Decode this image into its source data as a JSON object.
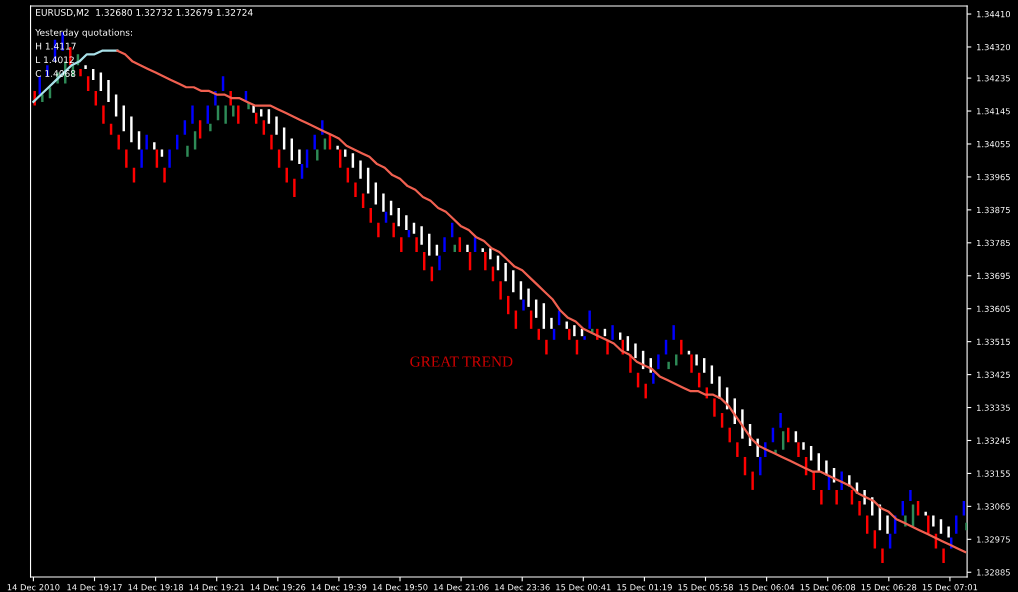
{
  "chart_data": {
    "type": "bar",
    "title": "EURUSD,M2  1.32680 1.32732 1.32679 1.32724",
    "annotations": [
      "Yesterday quotations:",
      "H 1.4117",
      "L 1.4012",
      "C 1.4068",
      "GREAT TREND"
    ],
    "categories": [
      "14 Dec 2010",
      null,
      null,
      null,
      null,
      null,
      null,
      null,
      "14 Dec 19:17",
      null,
      null,
      null,
      null,
      null,
      null,
      null,
      "14 Dec 19:18",
      null,
      null,
      null,
      null,
      null,
      null,
      null,
      "14 Dec 19:21",
      null,
      null,
      null,
      null,
      null,
      null,
      null,
      "14 Dec 19:26",
      null,
      null,
      null,
      null,
      null,
      null,
      null,
      "14 Dec 19:39",
      null,
      null,
      null,
      null,
      null,
      null,
      null,
      "14 Dec 19:50",
      null,
      null,
      null,
      null,
      null,
      null,
      null,
      "14 Dec 21:06",
      null,
      null,
      null,
      null,
      null,
      null,
      null,
      "14 Dec 23:36",
      null,
      null,
      null,
      null,
      null,
      null,
      null,
      "15 Dec 00:41",
      null,
      null,
      null,
      null,
      null,
      null,
      null,
      "15 Dec 01:19",
      null,
      null,
      null,
      null,
      null,
      null,
      null,
      "15 Dec 05:58",
      null,
      null,
      null,
      null,
      null,
      null,
      null,
      "15 Dec 06:04",
      null,
      null,
      null,
      null,
      null,
      null,
      null,
      "15 Dec 06:08",
      null,
      null,
      null,
      null,
      null,
      null,
      null,
      "15 Dec 06:28",
      null,
      null,
      null,
      null,
      null,
      null,
      null,
      "15 Dec 07:01",
      null,
      null
    ],
    "ylim": [
      1.32872,
      1.34432
    ],
    "yticks": [
      {
        "value": 1.3441,
        "label": "1.34410"
      },
      {
        "value": 1.3432,
        "label": "1.34320"
      },
      {
        "value": 1.34235,
        "label": "1.34235"
      },
      {
        "value": 1.34145,
        "label": "1.34145"
      },
      {
        "value": 1.34055,
        "label": "1.34055"
      },
      {
        "value": 1.33965,
        "label": "1.33965"
      },
      {
        "value": 1.33875,
        "label": "1.33875"
      },
      {
        "value": 1.33785,
        "label": "1.33785"
      },
      {
        "value": 1.33695,
        "label": "1.33695"
      },
      {
        "value": 1.33605,
        "label": "1.33605"
      },
      {
        "value": 1.33515,
        "label": "1.33515"
      },
      {
        "value": 1.33425,
        "label": "1.33425"
      },
      {
        "value": 1.33335,
        "label": "1.33335"
      },
      {
        "value": 1.33245,
        "label": "1.33245"
      },
      {
        "value": 1.33155,
        "label": "1.33155"
      },
      {
        "value": 1.33065,
        "label": "1.33065"
      },
      {
        "value": 1.32975,
        "label": "1.32975"
      },
      {
        "value": 1.32885,
        "label": "1.32885"
      }
    ],
    "series": [
      {
        "base": [
          null,
          1.3419,
          1.3424,
          1.3428,
          1.3431,
          1.3427,
          1.3427,
          1.3426,
          1.3423,
          1.342,
          1.3417,
          1.3413,
          1.3409,
          1.3406,
          1.3404,
          1.3404,
          1.3404,
          1.3402,
          1.3399,
          1.3404,
          1.3408,
          1.3411,
          1.3407,
          1.3411,
          1.3416,
          1.342,
          1.3416,
          1.3411,
          1.3417,
          1.3414,
          1.3413,
          1.3411,
          1.3408,
          1.3404,
          1.3401,
          1.34,
          1.3399,
          1.3404,
          1.3408,
          1.3404,
          1.3404,
          1.3402,
          1.3399,
          1.3396,
          1.3392,
          1.3389,
          1.3387,
          1.3386,
          1.3383,
          1.3382,
          1.3381,
          1.3378,
          1.3375,
          1.3375,
          1.3376,
          1.338,
          1.3376,
          1.3376,
          1.3376,
          1.3376,
          1.3374,
          1.3371,
          1.3368,
          1.3365,
          1.3363,
          1.3361,
          1.3358,
          1.3355,
          1.3355,
          1.3356,
          1.3355,
          1.3353,
          1.3353,
          1.3355,
          1.3352,
          1.3353,
          1.3352,
          1.3352,
          1.3349,
          1.3347,
          1.3344,
          1.3343,
          1.3344,
          1.3348,
          1.3352,
          1.3348,
          1.3348,
          1.3345,
          1.3343,
          1.334,
          1.3336,
          1.3333,
          1.3329,
          1.3325,
          1.3323,
          1.332,
          1.332,
          1.3324,
          1.3328,
          1.3324,
          1.3324,
          1.3322,
          1.3319,
          1.3316,
          1.3315,
          1.3313,
          1.3311,
          1.3312,
          1.331,
          1.3307,
          1.3304,
          1.33,
          1.3299,
          1.3299,
          1.3304,
          1.3308,
          1.3304,
          1.3304,
          1.3301,
          1.3299,
          1.3298,
          1.3299,
          1.3304
        ],
        "values": [
          null,
          0.0005,
          0.0003,
          0.0006,
          0.0005,
          0.0005,
          0.0003,
          0.0001,
          0.0003,
          0.0005,
          0.0006,
          0.0006,
          0.0007,
          0.0007,
          0.0005,
          0.0004,
          0.0002,
          0.0002,
          0.0005,
          0.0004,
          0.0004,
          0.0005,
          0.0005,
          0.0005,
          0.0004,
          0.0004,
          0.0004,
          0.0005,
          0.0003,
          0.0002,
          0.0002,
          0.0004,
          0.0005,
          0.0006,
          0.0006,
          0.0004,
          0.0005,
          0.0004,
          0.0004,
          0.0004,
          0.0001,
          0.0002,
          0.0004,
          0.0005,
          0.0007,
          0.0006,
          0.0005,
          0.0004,
          0.0005,
          0.0004,
          0.0003,
          0.0005,
          0.0006,
          0.0003,
          0.0004,
          0.0004,
          0.0004,
          0.0002,
          0.0004,
          0.0001,
          0.0003,
          0.0004,
          0.0005,
          0.0006,
          0.0005,
          0.0005,
          0.0005,
          0.0007,
          0.0003,
          0.0004,
          0.0002,
          0.0003,
          0.0002,
          0.0005,
          0.0003,
          0.0002,
          0.0004,
          0.0002,
          0.0004,
          0.0004,
          0.0005,
          0.0004,
          0.0004,
          0.0004,
          0.0004,
          0.0004,
          0.0001,
          0.0003,
          0.0004,
          0.0005,
          0.0006,
          0.0006,
          0.0007,
          0.0008,
          0.0006,
          0.0005,
          0.0004,
          0.0004,
          0.0004,
          0.0004,
          0.0003,
          0.0002,
          0.0004,
          0.0005,
          0.0004,
          0.0004,
          0.0005,
          0.0003,
          0.0003,
          0.0004,
          0.0005,
          0.0007,
          0.0005,
          0.0005,
          0.0004,
          0.0003,
          0.0004,
          0.0001,
          0.0003,
          0.0004,
          0.0003,
          0.0005,
          0.0004
        ],
        "colors": [
          null,
          "#0000ff",
          "#0000ff",
          "#0000ff",
          "#0000ff",
          "#ff0000",
          "#2e8b57",
          "#ffffff",
          "#ffffff",
          "#ffffff",
          "#ffffff",
          "#ffffff",
          "#ffffff",
          "#ffffff",
          "#ffffff",
          "#0000ff",
          "#ffffff",
          "#ffffff",
          "#0000ff",
          "#0000ff",
          "#0000ff",
          "#0000ff",
          "#ff0000",
          "#0000ff",
          "#0000ff",
          "#0000ff",
          "#ff0000",
          "#ff0000",
          "#0000ff",
          "#ffffff",
          "#ffffff",
          "#ffffff",
          "#ffffff",
          "#ffffff",
          "#ffffff",
          "#ffffff",
          "#0000ff",
          "#0000ff",
          "#0000ff",
          "#ff0000",
          "#ffffff",
          "#ffffff",
          "#ffffff",
          "#ffffff",
          "#ffffff",
          "#ffffff",
          "#ffffff",
          "#ffffff",
          "#ffffff",
          "#ffffff",
          "#ffffff",
          "#ffffff",
          "#ffffff",
          "#ffffff",
          "#0000ff",
          "#0000ff",
          "#ff0000",
          "#ffffff",
          "#0000ff",
          "#ffffff",
          "#ffffff",
          "#ffffff",
          "#ffffff",
          "#ffffff",
          "#ffffff",
          "#ffffff",
          "#ffffff",
          "#ffffff",
          "#ffffff",
          "#0000ff",
          "#ffffff",
          "#ffffff",
          "#ffffff",
          "#0000ff",
          "#ff0000",
          "#ffffff",
          "#0000ff",
          "#ffffff",
          "#ffffff",
          "#ffffff",
          "#ffffff",
          "#ffffff",
          "#0000ff",
          "#0000ff",
          "#0000ff",
          "#ff0000",
          "#ffffff",
          "#ffffff",
          "#ffffff",
          "#ffffff",
          "#ffffff",
          "#ffffff",
          "#ffffff",
          "#ffffff",
          "#ffffff",
          "#ffffff",
          "#0000ff",
          "#0000ff",
          "#0000ff",
          "#ff0000",
          "#ffffff",
          "#ffffff",
          "#ffffff",
          "#ffffff",
          "#ffffff",
          "#ffffff",
          "#0000ff",
          "#ffffff",
          "#ffffff",
          "#ffffff",
          "#ffffff",
          "#ffffff",
          "#ffffff",
          "#0000ff",
          "#0000ff",
          "#0000ff",
          "#ff0000",
          "#ffffff",
          "#ffffff",
          "#ffffff",
          "#ffffff",
          "#0000ff",
          "#0000ff"
        ]
      },
      {
        "base": [
          1.3416,
          1.3417,
          1.3418,
          1.3422,
          1.3422,
          1.3424,
          1.3424,
          1.342,
          1.3416,
          1.3411,
          1.3408,
          1.3404,
          1.3399,
          1.3395,
          1.3399,
          null,
          1.3399,
          1.3395,
          null,
          null,
          1.3402,
          1.3404,
          null,
          1.3409,
          1.3412,
          1.3411,
          1.3413,
          null,
          1.3415,
          1.3411,
          1.3408,
          1.3404,
          1.3399,
          1.3395,
          1.3391,
          1.3396,
          null,
          1.3401,
          1.3404,
          null,
          1.3399,
          1.3395,
          1.3391,
          1.3388,
          1.3384,
          1.338,
          1.3384,
          1.338,
          1.3376,
          1.338,
          1.3376,
          1.3371,
          1.3368,
          1.3371,
          null,
          1.3376,
          null,
          1.3371,
          null,
          1.3371,
          1.3368,
          1.3363,
          1.3359,
          1.3355,
          1.336,
          1.3355,
          1.3352,
          1.3348,
          1.3352,
          null,
          1.3352,
          1.3348,
          1.3352,
          1.3354,
          null,
          1.3348,
          null,
          1.3348,
          1.3343,
          1.3339,
          1.3336,
          1.334,
          null,
          1.3344,
          1.3345,
          null,
          1.3343,
          1.3339,
          1.3336,
          1.3331,
          1.3328,
          1.3324,
          1.332,
          1.3315,
          1.3311,
          1.3315,
          null,
          1.3321,
          1.3322,
          null,
          1.332,
          1.3315,
          1.3311,
          1.3307,
          1.3311,
          1.3307,
          null,
          1.3307,
          1.3304,
          1.3299,
          1.3295,
          1.3291,
          1.3295,
          null,
          1.3301,
          1.3301,
          null,
          1.3299,
          1.3295,
          1.3291,
          1.3295,
          null,
          1.33
        ],
        "values": [
          0.0004,
          0.0002,
          0.0003,
          0.0003,
          0.0006,
          0.0003,
          0.0002,
          0.0004,
          0.0004,
          0.0005,
          0.0003,
          0.0004,
          0.0005,
          0.0004,
          0.0005,
          null,
          0.0005,
          0.0004,
          null,
          null,
          0.0003,
          0.0005,
          null,
          0.0002,
          0.0004,
          0.0005,
          0.0003,
          null,
          0.0002,
          0.0003,
          0.0004,
          0.0004,
          0.0005,
          0.0004,
          0.0005,
          0.0004,
          null,
          0.0003,
          0.0003,
          null,
          0.0005,
          0.0004,
          0.0004,
          0.0004,
          0.0004,
          0.0004,
          0.0003,
          0.0004,
          0.0004,
          0.0002,
          0.0004,
          0.0005,
          0.0004,
          0.0004,
          null,
          0.0002,
          null,
          0.0005,
          null,
          0.0005,
          0.0004,
          0.0005,
          0.0005,
          0.0005,
          0.0003,
          0.0005,
          0.0003,
          0.0004,
          0.0003,
          null,
          0.0003,
          0.0004,
          0.0001,
          0.0001,
          null,
          0.0004,
          null,
          0.0004,
          0.0005,
          0.0004,
          0.0004,
          0.0003,
          null,
          0.0002,
          0.0003,
          null,
          0.0005,
          0.0004,
          0.0003,
          0.0005,
          0.0004,
          0.0004,
          0.0004,
          0.0005,
          0.0005,
          0.0005,
          null,
          0.0001,
          0.0005,
          null,
          0.0004,
          0.0005,
          0.0005,
          0.0004,
          0.0004,
          0.0004,
          null,
          0.0004,
          0.0004,
          0.0005,
          0.0005,
          0.0004,
          0.0004,
          null,
          0.0003,
          0.0006,
          null,
          0.0005,
          0.0004,
          0.0004,
          0.0003,
          null,
          0.0002
        ],
        "colors": [
          "#ff0000",
          "#2e8b57",
          "#2e8b57",
          "#2e8b57",
          "#2e8b57",
          "#2e8b57",
          "#ff0000",
          "#ff0000",
          "#ff0000",
          "#ff0000",
          "#ff0000",
          "#ff0000",
          "#ff0000",
          "#ff0000",
          "#0000ff",
          null,
          "#ff0000",
          "#ff0000",
          null,
          null,
          "#2e8b57",
          "#2e8b57",
          null,
          "#2e8b57",
          "#2e8b57",
          "#2e8b57",
          "#2e8b57",
          null,
          "#2e8b57",
          "#ff0000",
          "#ff0000",
          "#ff0000",
          "#ff0000",
          "#ff0000",
          "#ff0000",
          "#0000ff",
          null,
          "#2e8b57",
          "#2e8b57",
          null,
          "#ff0000",
          "#ff0000",
          "#ff0000",
          "#ff0000",
          "#ff0000",
          "#ff0000",
          "#0000ff",
          "#ff0000",
          "#ff0000",
          "#0000ff",
          "#ff0000",
          "#ff0000",
          "#ff0000",
          "#0000ff",
          null,
          "#2e8b57",
          null,
          "#ff0000",
          null,
          "#ff0000",
          "#ff0000",
          "#ff0000",
          "#ff0000",
          "#ff0000",
          "#0000ff",
          "#ff0000",
          "#ff0000",
          "#ff0000",
          "#0000ff",
          null,
          "#ff0000",
          "#ff0000",
          "#0000ff",
          "#2e8b57",
          null,
          "#ff0000",
          null,
          "#ff0000",
          "#ff0000",
          "#ff0000",
          "#ff0000",
          "#0000ff",
          null,
          "#2e8b57",
          "#2e8b57",
          null,
          "#ff0000",
          "#ff0000",
          "#ff0000",
          "#ff0000",
          "#ff0000",
          "#ff0000",
          "#ff0000",
          "#ff0000",
          "#ff0000",
          "#0000ff",
          null,
          "#2e8b57",
          "#2e8b57",
          null,
          "#ff0000",
          "#ff0000",
          "#ff0000",
          "#ff0000",
          "#0000ff",
          "#ff0000",
          null,
          "#ff0000",
          "#ff0000",
          "#ff0000",
          "#ff0000",
          "#ff0000",
          "#0000ff",
          null,
          "#2e8b57",
          "#2e8b57",
          null,
          "#ff0000",
          "#ff0000",
          "#ff0000",
          "#0000ff",
          null,
          "#2e8b57"
        ]
      },
      {
        "type": "line",
        "color": "#a8e0e8",
        "values": [
          1.3417,
          1.3419,
          1.3421,
          1.3423,
          1.3425,
          1.3427,
          1.3428,
          1.343,
          1.343,
          1.3431,
          1.3431,
          1.3431,
          null,
          null,
          null,
          null,
          null,
          null,
          null,
          null,
          null,
          null,
          null,
          null,
          null,
          null,
          null,
          null,
          null,
          null,
          null,
          null,
          null,
          null,
          null,
          null,
          null,
          null,
          null,
          null,
          null,
          null,
          null,
          null,
          null,
          null,
          null,
          null,
          null,
          null,
          null,
          null,
          null,
          null,
          null,
          null,
          null,
          null,
          null,
          null,
          null,
          null,
          null,
          null,
          null,
          null,
          null,
          null,
          null,
          null,
          null,
          null,
          null,
          null,
          null,
          null,
          null,
          null,
          null,
          null,
          null,
          null,
          null,
          null,
          null,
          null,
          null,
          null,
          null,
          null,
          null,
          null,
          null,
          null,
          null,
          null,
          null,
          null,
          null,
          null,
          null,
          null,
          null,
          null,
          null,
          null,
          null,
          null,
          null,
          null,
          null,
          null,
          null,
          null,
          null,
          null,
          null,
          null,
          null,
          null,
          null,
          null,
          null
        ]
      },
      {
        "type": "line",
        "color": "#f06050",
        "values": [
          null,
          null,
          null,
          null,
          null,
          null,
          null,
          null,
          null,
          null,
          null,
          1.3431,
          1.343,
          1.3428,
          1.3427,
          1.3426,
          1.3425,
          1.3424,
          1.3423,
          1.3422,
          1.3421,
          1.3421,
          1.342,
          1.342,
          1.3419,
          1.3419,
          1.3418,
          1.3418,
          1.3417,
          1.3416,
          1.3416,
          1.3416,
          1.3415,
          1.3414,
          1.3413,
          1.3412,
          1.3411,
          1.341,
          1.3409,
          1.3408,
          1.3407,
          1.3405,
          1.3404,
          1.3403,
          1.3402,
          1.34,
          1.3399,
          1.3397,
          1.3396,
          1.3394,
          1.3393,
          1.3391,
          1.339,
          1.3388,
          1.3387,
          1.3385,
          1.3383,
          1.3382,
          1.338,
          1.3379,
          1.3377,
          1.3376,
          1.3374,
          1.3372,
          1.3371,
          1.3369,
          1.3367,
          1.3365,
          1.3363,
          1.336,
          1.3358,
          1.3357,
          1.3355,
          1.3354,
          1.3353,
          1.3352,
          1.3351,
          1.3349,
          1.3348,
          1.3346,
          1.3345,
          1.3344,
          1.3342,
          1.3341,
          1.334,
          1.3339,
          1.3338,
          1.3338,
          1.3337,
          1.3337,
          1.3336,
          1.3334,
          1.3331,
          1.3328,
          1.3325,
          1.3323,
          1.3322,
          1.3321,
          1.332,
          1.3319,
          1.3318,
          1.3317,
          1.3316,
          1.3316,
          1.3315,
          1.3314,
          1.3313,
          1.3312,
          1.331,
          1.3309,
          1.3308,
          1.3306,
          1.3305,
          1.3303,
          1.3302,
          1.3301,
          1.33,
          1.3299,
          1.3298,
          1.3297,
          1.3296,
          1.3295,
          1.3294
        ]
      }
    ]
  }
}
